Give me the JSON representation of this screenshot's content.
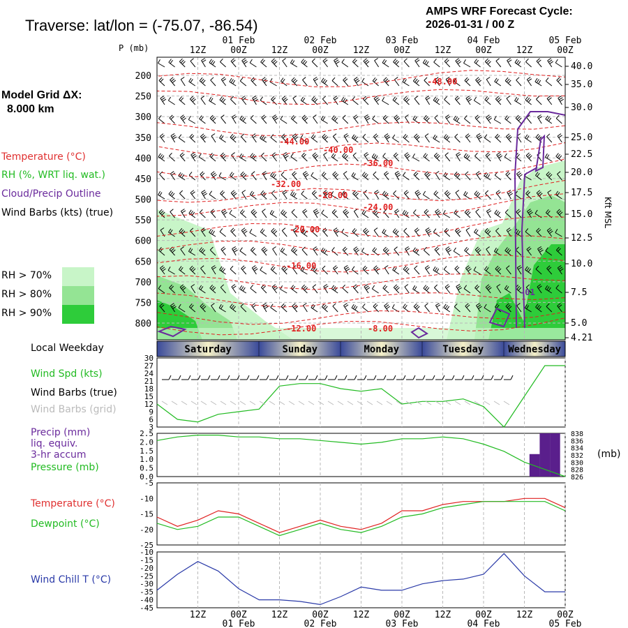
{
  "header": {
    "title": "Traverse:  lat/lon = (-75.07, -86.54)",
    "cycle_line1": "AMPS WRF Forecast Cycle:",
    "cycle_line2": "2026-01-31 / 00  Z",
    "grid_label": "Model Grid ΔX:",
    "grid_value": "8.000 km"
  },
  "legend": {
    "temperature": "Temperature (°C)",
    "rh": "RH (%, WRT liq. wat.)",
    "cloud": "Cloud/Precip Outline",
    "wind": "Wind Barbs (kts) (true)",
    "rh70": "RH > 70%",
    "rh80": "RH > 80%",
    "rh90": "RH > 90%",
    "rh70_color": "#c8f5c8",
    "rh80_color": "#94e494",
    "rh90_color": "#2ecc3a",
    "weekday_label": "Local Weekday",
    "wind_spd": "Wind Spd (kts)",
    "barbs_true": "Wind Barbs (true)",
    "barbs_grid": "Wind Barbs (grid)",
    "precip1": "Precip (mm)",
    "precip2": "liq. equiv.",
    "precip3": "3-hr accum",
    "pressure": "Pressure (mb)",
    "temp2": "Temperature (°C)",
    "dewpoint": "Dewpoint (°C)",
    "windchill": "Wind Chill T (°C)",
    "mb_unit": "(mb)",
    "kft": "Kft MSL"
  },
  "time_axis": {
    "hour_labels": [
      "12Z",
      "00Z",
      "12Z",
      "00Z",
      "12Z",
      "00Z",
      "12Z",
      "00Z",
      "12Z",
      "00Z"
    ],
    "date_labels": [
      "01 Feb",
      "02 Feb",
      "03 Feb",
      "04 Feb",
      "05 Feb"
    ],
    "p_label": "P (mb)"
  },
  "weekdays": [
    "Saturday",
    "Sunday",
    "Monday",
    "Tuesday",
    "Wednesday"
  ],
  "chart_data": [
    {
      "type": "contour",
      "title": "Cross-section: Temperature, RH, Cloud outline, Wind barbs",
      "pressure_ticks": [
        200,
        250,
        300,
        350,
        400,
        450,
        500,
        550,
        600,
        650,
        700,
        750,
        800
      ],
      "height_ticks": [
        "40.0",
        "35.0",
        "30.0",
        "25.0",
        "22.5",
        "20.0",
        "17.5",
        "15.0",
        "12.5",
        "10.0",
        "7.5",
        "5.0",
        "4.21"
      ],
      "contour_labels": [
        "-48.00",
        "-44.00",
        "-40.00",
        "-36.00",
        "-32.00",
        "-28.00",
        "-24.00",
        "-20.00",
        "-16.00",
        "-12.00",
        "-8.00",
        "-01"
      ]
    },
    {
      "type": "line",
      "title": "Wind Spd (kts)",
      "ylim": [
        3,
        30
      ],
      "yticks": [
        "30",
        "27",
        "24",
        "21",
        "18",
        "15",
        "12",
        "9",
        "6",
        "3"
      ],
      "x_hours": [
        0,
        6,
        12,
        18,
        24,
        30,
        36,
        42,
        48,
        54,
        60,
        66,
        72,
        78,
        84,
        90,
        96,
        102,
        108,
        114,
        120
      ],
      "values": [
        12,
        6,
        5,
        8,
        9,
        10,
        19,
        20,
        20,
        18,
        17,
        18,
        12,
        13,
        13,
        14,
        11,
        3,
        15,
        27,
        27
      ]
    },
    {
      "type": "line",
      "title": "Precip / Pressure",
      "precip_ticks": [
        "2.5",
        "2.0",
        "1.5",
        "1.0",
        "0.5",
        "0.0"
      ],
      "pressure_ticks": [
        "838",
        "836",
        "834",
        "832",
        "830",
        "828",
        "826"
      ],
      "x_hours": [
        0,
        6,
        12,
        18,
        24,
        30,
        36,
        42,
        48,
        54,
        60,
        66,
        72,
        78,
        84,
        90,
        96,
        102,
        108,
        114,
        120
      ],
      "pressure_mb": [
        836,
        837,
        837.5,
        837.5,
        837,
        837,
        836.5,
        836.5,
        836,
        835.5,
        835,
        835.5,
        836.5,
        836.5,
        837,
        836.5,
        835,
        833,
        830,
        828,
        826
      ],
      "precip_mm": [
        {
          "hour": 111,
          "value": 1.3
        },
        {
          "hour": 114,
          "value": 2.5
        },
        {
          "hour": 117,
          "value": 2.5
        }
      ]
    },
    {
      "type": "line",
      "title": "Temperature / Dewpoint (°C)",
      "yticks": [
        "-5",
        "-10",
        "-15",
        "-20",
        "-25"
      ],
      "x_hours": [
        0,
        6,
        12,
        18,
        24,
        30,
        36,
        42,
        48,
        54,
        60,
        66,
        72,
        78,
        84,
        90,
        96,
        102,
        108,
        114,
        120
      ],
      "temperature": [
        -16,
        -19,
        -17,
        -14,
        -15,
        -18,
        -21,
        -19,
        -17,
        -19,
        -20,
        -18,
        -14,
        -14,
        -12,
        -11,
        -11,
        -11,
        -10,
        -10,
        -13
      ],
      "dewpoint": [
        -18,
        -20,
        -19,
        -16,
        -16,
        -19,
        -22,
        -20,
        -18,
        -20,
        -21,
        -19,
        -16,
        -15,
        -13,
        -12,
        -11,
        -11,
        -11,
        -11,
        -14
      ]
    },
    {
      "type": "line",
      "title": "Wind Chill T (°C)",
      "yticks": [
        "-10",
        "-15",
        "-20",
        "-25",
        "-30",
        "-35",
        "-40",
        "-45"
      ],
      "x_hours": [
        0,
        6,
        12,
        18,
        24,
        30,
        36,
        42,
        48,
        54,
        60,
        66,
        72,
        78,
        84,
        90,
        96,
        102,
        108,
        114,
        120
      ],
      "values": [
        -34,
        -24,
        -16,
        -22,
        -33,
        -40,
        -40,
        -41,
        -43,
        -38,
        -32,
        -34,
        -34,
        -30,
        -28,
        -27,
        -24,
        -11,
        -25,
        -35,
        -35
      ]
    }
  ]
}
